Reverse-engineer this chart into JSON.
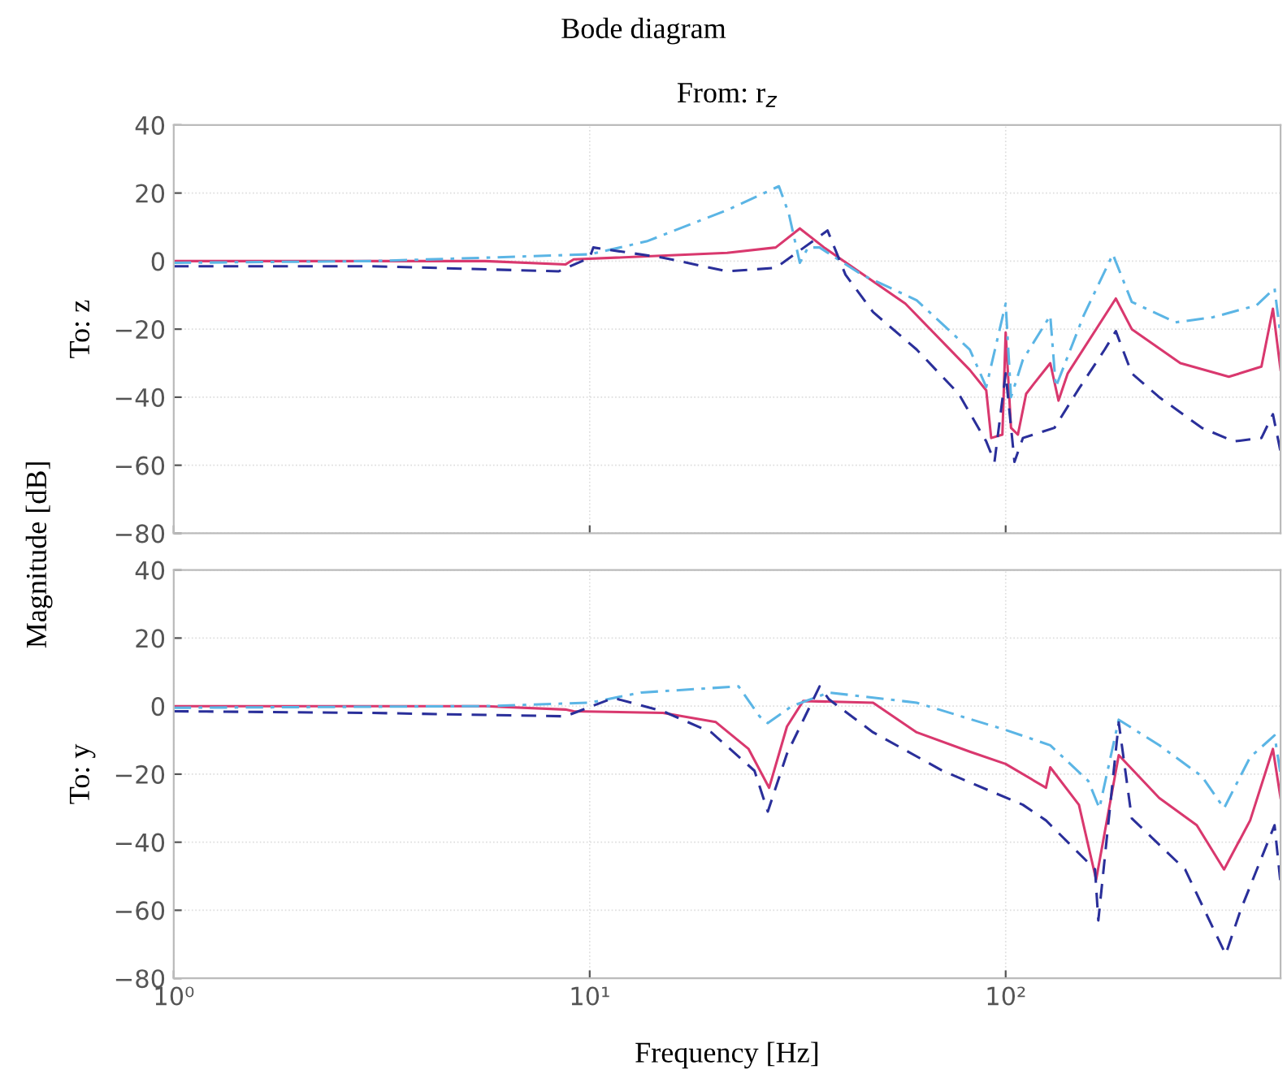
{
  "chart_data": [
    {
      "type": "line",
      "title": "Bode diagram",
      "subtitle": "From: r$_{z}$",
      "ylabel": "To: z",
      "annotations": [
        "Magnitude [dB]"
      ],
      "xlim": [
        1,
        458
      ],
      "ylim": [
        -80,
        40
      ],
      "log": "x",
      "xticks": [
        {
          "value": 1,
          "label": null
        },
        {
          "value": 10,
          "label": null
        },
        {
          "value": 100,
          "label": null
        }
      ],
      "yticks": [
        -80,
        -60,
        -40,
        -20,
        0,
        20,
        40
      ],
      "grid": true,
      "legend": false,
      "tick_labels": "y",
      "series": [
        {
          "color": "#d9386e",
          "line_style": "solid",
          "x": [
            1,
            5.6,
            8.74,
            9.15,
            21.4,
            28.0,
            32.0,
            36.6,
            57.4,
            82.0,
            89.8,
            92.3,
            98.2,
            100,
            103,
            107,
            112,
            117,
            128,
            134,
            141,
            184,
            201,
            263,
            344,
            412,
            439,
            458
          ],
          "values": [
            0,
            0,
            -1,
            0.5,
            2.4,
            4,
            9.6,
            4,
            -12.5,
            -32,
            -38,
            -52,
            -51,
            -21,
            -49,
            -51,
            -39,
            -36,
            -30,
            -41,
            -33,
            -11,
            -20,
            -30,
            -34,
            -31,
            -14,
            -32
          ]
        },
        {
          "color": "#5bb5e5",
          "line_style": "dashdot",
          "x": [
            1,
            3,
            5.6,
            10,
            13.7,
            21.4,
            28.5,
            30.1,
            32.0,
            33.5,
            35.7,
            45.1,
            61.1,
            82.0,
            89.8,
            100,
            103,
            110,
            128,
            132,
            154,
            181,
            201,
            256,
            315,
            401,
            443,
            458
          ],
          "values": [
            -0.5,
            0,
            1,
            2,
            5.8,
            15,
            22,
            14,
            -0.5,
            4,
            4,
            -4,
            -11.5,
            -26,
            -37,
            -12.5,
            -40,
            -29,
            -16,
            -37,
            -16,
            2,
            -12,
            -18,
            -16.5,
            -13,
            -8,
            -22
          ]
        },
        {
          "color": "#2a2f9a",
          "line_style": "dashed",
          "x": [
            1,
            3,
            8.43,
            10,
            10.2,
            15.0,
            21.4,
            28.0,
            37.3,
            41.2,
            48.0,
            61.1,
            77.1,
            89.8,
            94.0,
            100,
            105,
            110,
            131,
            150,
            173,
            184,
            201,
            234,
            296,
            354,
            412,
            439,
            458
          ],
          "values": [
            -1.5,
            -1.5,
            -3,
            1,
            4,
            1,
            -3,
            -2,
            9,
            -4,
            -15,
            -26,
            -39,
            -53,
            -59,
            -33,
            -59,
            -52,
            -49,
            -37.5,
            -26,
            -20.6,
            -33,
            -40,
            -49,
            -53,
            -52,
            -45,
            -56
          ]
        }
      ]
    },
    {
      "type": "line",
      "ylabel": "To: y",
      "xlabel": "Frequency [Hz]",
      "xlim": [
        1,
        458
      ],
      "ylim": [
        -80,
        40
      ],
      "log": "x",
      "xticks": [
        {
          "value": 1,
          "label": "10⁰"
        },
        {
          "value": 10,
          "label": "10¹"
        },
        {
          "value": 100,
          "label": "10²"
        }
      ],
      "yticks": [
        -80,
        -60,
        -40,
        -20,
        0,
        20,
        40
      ],
      "grid": true,
      "legend": false,
      "series": [
        {
          "color": "#d9386e",
          "line_style": "solid",
          "x": [
            1,
            5.6,
            8.74,
            9.15,
            15.0,
            20.1,
            24.1,
            27.0,
            29.8,
            32.6,
            48.0,
            61.1,
            82.0,
            100,
            125,
            128,
            150,
            165,
            187,
            234,
            288,
            335,
            387,
            439,
            458
          ],
          "values": [
            0,
            0,
            -1,
            -1.5,
            -2,
            -4.7,
            -12.6,
            -24,
            -6,
            1.5,
            1,
            -7.7,
            -13.4,
            -17,
            -24,
            -18,
            -29,
            -51,
            -14.4,
            -27,
            -35,
            -48,
            -33.6,
            -12.6,
            -27
          ]
        },
        {
          "color": "#5bb5e5",
          "line_style": "dashdot",
          "x": [
            1,
            5.6,
            10,
            13.3,
            22.8,
            25.6,
            26.8,
            30.6,
            37.6,
            61.1,
            100,
            128,
            158,
            168,
            187,
            234,
            296,
            335,
            387,
            443,
            458
          ],
          "values": [
            -0.5,
            0,
            1,
            4,
            5.8,
            -3,
            -5,
            0,
            4,
            1,
            -7,
            -11.5,
            -22,
            -30,
            -4,
            -11.5,
            -20.6,
            -30,
            -15,
            -8.6,
            -20
          ]
        },
        {
          "color": "#2a2f9a",
          "line_style": "dashed",
          "x": [
            1,
            3,
            8.74,
            11.4,
            15.0,
            19.6,
            24.9,
            26.8,
            29.8,
            35.7,
            37.6,
            48.0,
            70.5,
            110,
            125,
            164,
            167,
            187,
            201,
            270,
            338,
            367,
            443,
            458
          ],
          "values": [
            -1.5,
            -2,
            -3,
            2.4,
            -1.5,
            -7.7,
            -19,
            -31,
            -14,
            5.8,
            2,
            -7.7,
            -19,
            -29,
            -33.6,
            -48,
            -63,
            -4.8,
            -33,
            -48,
            -73,
            -60,
            -35,
            -52
          ]
        }
      ]
    }
  ]
}
